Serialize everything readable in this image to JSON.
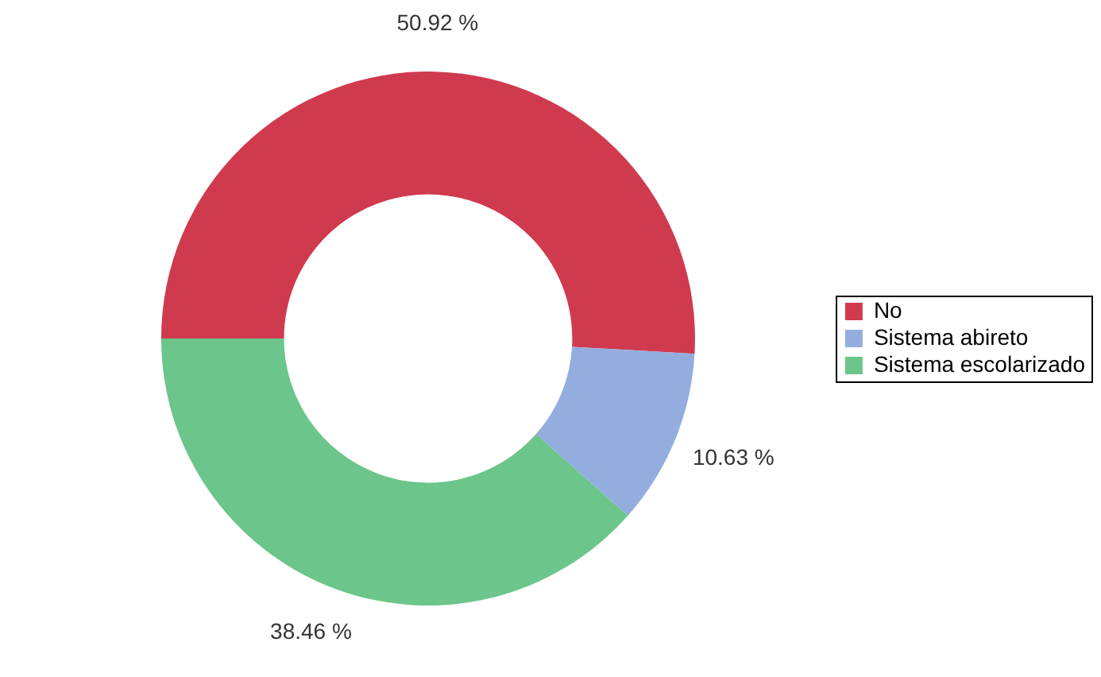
{
  "chart_data": {
    "type": "donut",
    "categories": [
      "No",
      "Sistema abireto",
      "Sistema escolarizado"
    ],
    "values": [
      50.92,
      10.63,
      38.46
    ],
    "value_labels": [
      "50.92 %",
      "10.63 %",
      "38.46 %"
    ],
    "colors": [
      "#d03a4f",
      "#93addf",
      "#6cc58b"
    ],
    "legend": "right"
  }
}
